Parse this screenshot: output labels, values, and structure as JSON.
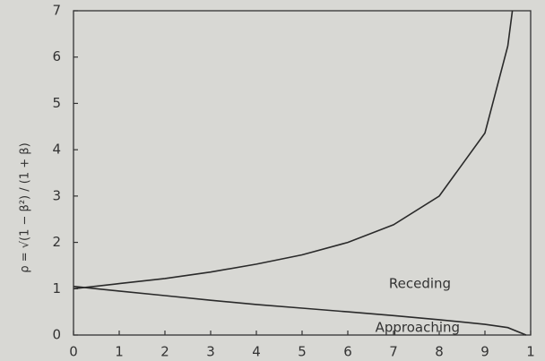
{
  "chart_data": {
    "type": "line",
    "ylabel": "ρ = √(1 − β²) / (1 + β)",
    "series": [
      {
        "name": "Receding",
        "color": "#2a2a2a",
        "x": [
          0,
          0.1,
          0.2,
          0.3,
          0.4,
          0.5,
          0.6,
          0.7,
          0.8,
          0.9,
          0.95,
          0.96
        ],
        "values": [
          1,
          1.11,
          1.22,
          1.36,
          1.53,
          1.73,
          2,
          2.38,
          3,
          4.36,
          6.24,
          7
        ]
      },
      {
        "name": "Approaching",
        "color": "#2a2a2a",
        "x": [
          0,
          0.1,
          0.2,
          0.3,
          0.4,
          0.5,
          0.6,
          0.7,
          0.8,
          0.9,
          0.95,
          0.99
        ],
        "values": [
          1.05,
          0.95,
          0.85,
          0.75,
          0.66,
          0.58,
          0.5,
          0.42,
          0.33,
          0.23,
          0.16,
          0
        ]
      }
    ],
    "xlim": [
      0,
      1
    ],
    "ylim": [
      0,
      7
    ],
    "xticks": [
      0,
      {
        "value": 0.1,
        "label": "1"
      },
      {
        "value": 0.2,
        "label": "2"
      },
      {
        "value": 0.3,
        "label": "3"
      },
      {
        "value": 0.4,
        "label": "4"
      },
      {
        "value": 0.5,
        "label": "5"
      },
      {
        "value": 0.6,
        "label": "6"
      },
      {
        "value": 0.7,
        "label": "7"
      },
      {
        "value": 0.8,
        "label": "8"
      },
      {
        "value": 0.9,
        "label": "9"
      },
      1
    ],
    "yticks": [
      0,
      1,
      2,
      3,
      4,
      5,
      6,
      7
    ]
  }
}
